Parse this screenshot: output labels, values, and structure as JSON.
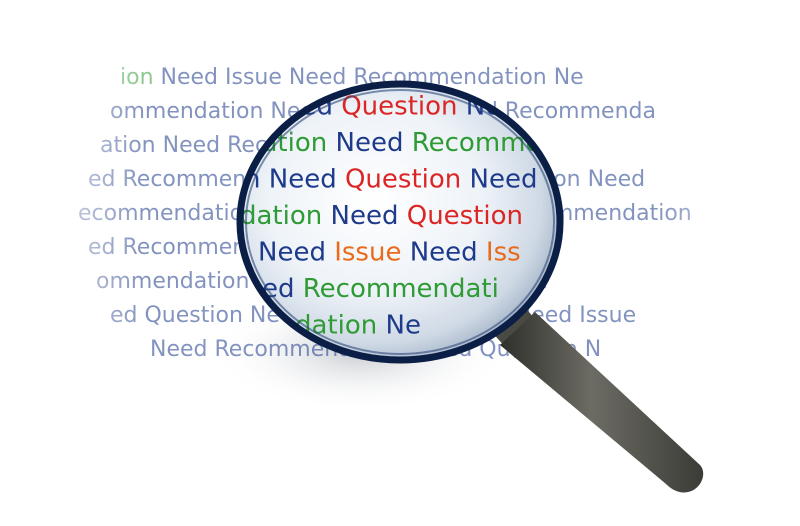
{
  "colors": {
    "need": "#1e3a8a",
    "question": "#dc2626",
    "recommendation": "#2e9b34",
    "issue": "#ea6a1c",
    "background": "#ffffff",
    "lens_rim": "#0b1e46",
    "handle": "#5a5a52"
  },
  "text_rows": [
    {
      "background": [
        {
          "text": "ion",
          "kind": "recommendation"
        },
        {
          "text": "Need",
          "kind": "need"
        },
        {
          "text": "Issue",
          "kind": "need"
        },
        {
          "text": "Need",
          "kind": "need"
        },
        {
          "text": "Recommendation",
          "kind": "need"
        },
        {
          "text": "Ne",
          "kind": "need"
        }
      ],
      "lens": [
        {
          "text": "Need",
          "kind": "need"
        },
        {
          "text": "Recommendation",
          "kind": "recommendation"
        }
      ]
    },
    {
      "background": [
        {
          "text": "ommendation",
          "kind": "need"
        },
        {
          "text": "Need",
          "kind": "need"
        },
        {
          "text": "Question",
          "kind": "need"
        },
        {
          "text": "Need",
          "kind": "need"
        },
        {
          "text": "Recommenda",
          "kind": "need"
        }
      ],
      "lens": [
        {
          "text": "Need",
          "kind": "need"
        },
        {
          "text": "Question",
          "kind": "question"
        },
        {
          "text": "Need",
          "kind": "need"
        }
      ]
    },
    {
      "background": [
        {
          "text": "ation",
          "kind": "need"
        },
        {
          "text": "Need",
          "kind": "need"
        },
        {
          "text": "Recommendation",
          "kind": "need"
        },
        {
          "text": "Need",
          "kind": "need"
        }
      ],
      "lens": [
        {
          "text": "dation",
          "kind": "recommendation"
        },
        {
          "text": "Need",
          "kind": "need"
        },
        {
          "text": "Recommendation",
          "kind": "recommendation"
        }
      ]
    },
    {
      "background": [
        {
          "text": "ed Recommendation",
          "kind": "need"
        },
        {
          "text": "Need",
          "kind": "need"
        },
        {
          "text": "Recommendation",
          "kind": "need"
        },
        {
          "text": "Need",
          "kind": "need"
        }
      ],
      "lens": [
        {
          "text": "n",
          "kind": "need"
        },
        {
          "text": "Need",
          "kind": "need"
        },
        {
          "text": "Question",
          "kind": "question"
        },
        {
          "text": "Need",
          "kind": "need"
        }
      ]
    },
    {
      "background": [
        {
          "text": "ecommendation",
          "kind": "need"
        },
        {
          "text": "Need",
          "kind": "need"
        },
        {
          "text": "Question",
          "kind": "need"
        },
        {
          "text": "Need",
          "kind": "need"
        },
        {
          "text": "Recommendation",
          "kind": "need"
        }
      ],
      "lens": [
        {
          "text": "dation",
          "kind": "recommendation"
        },
        {
          "text": "Need",
          "kind": "need"
        },
        {
          "text": "Question",
          "kind": "question"
        }
      ]
    },
    {
      "background": [
        {
          "text": "ed Recommendation",
          "kind": "need"
        },
        {
          "text": "Need",
          "kind": "need"
        },
        {
          "text": "Question",
          "kind": "need"
        },
        {
          "text": "Need",
          "kind": "need"
        }
      ],
      "lens": [
        {
          "text": "Need",
          "kind": "need"
        },
        {
          "text": "Issue",
          "kind": "issue"
        },
        {
          "text": "Need",
          "kind": "need"
        },
        {
          "text": "Iss",
          "kind": "issue"
        }
      ]
    },
    {
      "background": [
        {
          "text": "ommendation",
          "kind": "need"
        },
        {
          "text": "Need",
          "kind": "need"
        },
        {
          "text": "Issue",
          "kind": "need"
        },
        {
          "text": "Need",
          "kind": "need"
        },
        {
          "text": "Question",
          "kind": "need"
        }
      ],
      "lens": [
        {
          "text": "ed",
          "kind": "need"
        },
        {
          "text": "Recommendati",
          "kind": "recommendation"
        }
      ]
    },
    {
      "background": [
        {
          "text": "ed Question",
          "kind": "need"
        },
        {
          "text": "Need",
          "kind": "need"
        },
        {
          "text": "Recommendation",
          "kind": "need"
        },
        {
          "text": "Need",
          "kind": "need"
        },
        {
          "text": "Issue",
          "kind": "need"
        }
      ],
      "lens": [
        {
          "text": "dation",
          "kind": "recommendation"
        },
        {
          "text": "Ne",
          "kind": "need"
        }
      ]
    },
    {
      "background": [
        {
          "text": "Need Recommendation",
          "kind": "need"
        },
        {
          "text": "Need",
          "kind": "need"
        },
        {
          "text": "Question",
          "kind": "need"
        },
        {
          "text": "N",
          "kind": "need"
        }
      ],
      "lens": []
    }
  ]
}
